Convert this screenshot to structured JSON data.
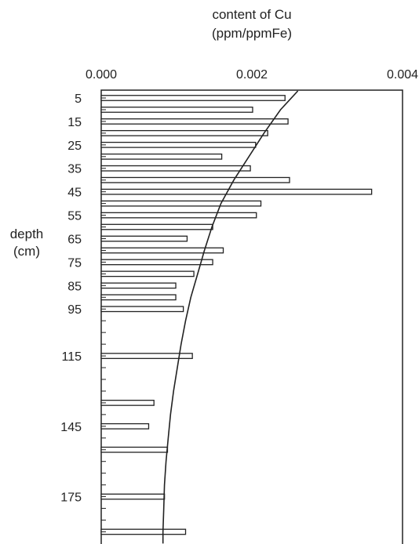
{
  "chart_data": {
    "type": "bar",
    "orientation": "horizontal",
    "title_lines": [
      "content of Cu",
      "(ppm/ppmFe)"
    ],
    "ylabel_lines": [
      "depth",
      "(cm)"
    ],
    "x_ticks": [
      "0.000",
      "0.002",
      "0.004"
    ],
    "xlim": [
      0,
      0.004
    ],
    "y_ticks": [
      "5",
      "15",
      "25",
      "35",
      "45",
      "55",
      "65",
      "75",
      "85",
      "95",
      "115",
      "145",
      "175"
    ],
    "ylim_depth_cm": [
      0,
      195
    ],
    "bars": [
      {
        "depth": 5,
        "value": 0.00244
      },
      {
        "depth": 10,
        "value": 0.00201
      },
      {
        "depth": 15,
        "value": 0.00248
      },
      {
        "depth": 20,
        "value": 0.00221
      },
      {
        "depth": 25,
        "value": 0.00205
      },
      {
        "depth": 30,
        "value": 0.0016
      },
      {
        "depth": 35,
        "value": 0.00198
      },
      {
        "depth": 40,
        "value": 0.0025
      },
      {
        "depth": 45,
        "value": 0.00359
      },
      {
        "depth": 50,
        "value": 0.00212
      },
      {
        "depth": 55,
        "value": 0.00206
      },
      {
        "depth": 60,
        "value": 0.00148
      },
      {
        "depth": 65,
        "value": 0.00114
      },
      {
        "depth": 70,
        "value": 0.00162
      },
      {
        "depth": 75,
        "value": 0.00148
      },
      {
        "depth": 80,
        "value": 0.00123
      },
      {
        "depth": 85,
        "value": 0.00099
      },
      {
        "depth": 90,
        "value": 0.00099
      },
      {
        "depth": 95,
        "value": 0.00109
      },
      {
        "depth": 115,
        "value": 0.00121
      },
      {
        "depth": 135,
        "value": 0.0007
      },
      {
        "depth": 145,
        "value": 0.00063
      },
      {
        "depth": 155,
        "value": 0.00088
      },
      {
        "depth": 175,
        "value": 0.00084
      },
      {
        "depth": 190,
        "value": 0.00112
      }
    ],
    "fit_curve": [
      {
        "depth": 2,
        "value": 0.00261
      },
      {
        "depth": 10,
        "value": 0.00238
      },
      {
        "depth": 20,
        "value": 0.00216
      },
      {
        "depth": 30,
        "value": 0.00196
      },
      {
        "depth": 40,
        "value": 0.00176
      },
      {
        "depth": 50,
        "value": 0.00159
      },
      {
        "depth": 60,
        "value": 0.00147
      },
      {
        "depth": 70,
        "value": 0.00137
      },
      {
        "depth": 80,
        "value": 0.00128
      },
      {
        "depth": 90,
        "value": 0.00119
      },
      {
        "depth": 100,
        "value": 0.00112
      },
      {
        "depth": 110,
        "value": 0.00106
      },
      {
        "depth": 120,
        "value": 0.00101
      },
      {
        "depth": 130,
        "value": 0.00096
      },
      {
        "depth": 140,
        "value": 0.00092
      },
      {
        "depth": 150,
        "value": 0.00089
      },
      {
        "depth": 160,
        "value": 0.00086
      },
      {
        "depth": 170,
        "value": 0.00084
      },
      {
        "depth": 180,
        "value": 0.00083
      },
      {
        "depth": 190,
        "value": 0.00082
      },
      {
        "depth": 195,
        "value": 0.00082
      }
    ],
    "grid": false
  }
}
